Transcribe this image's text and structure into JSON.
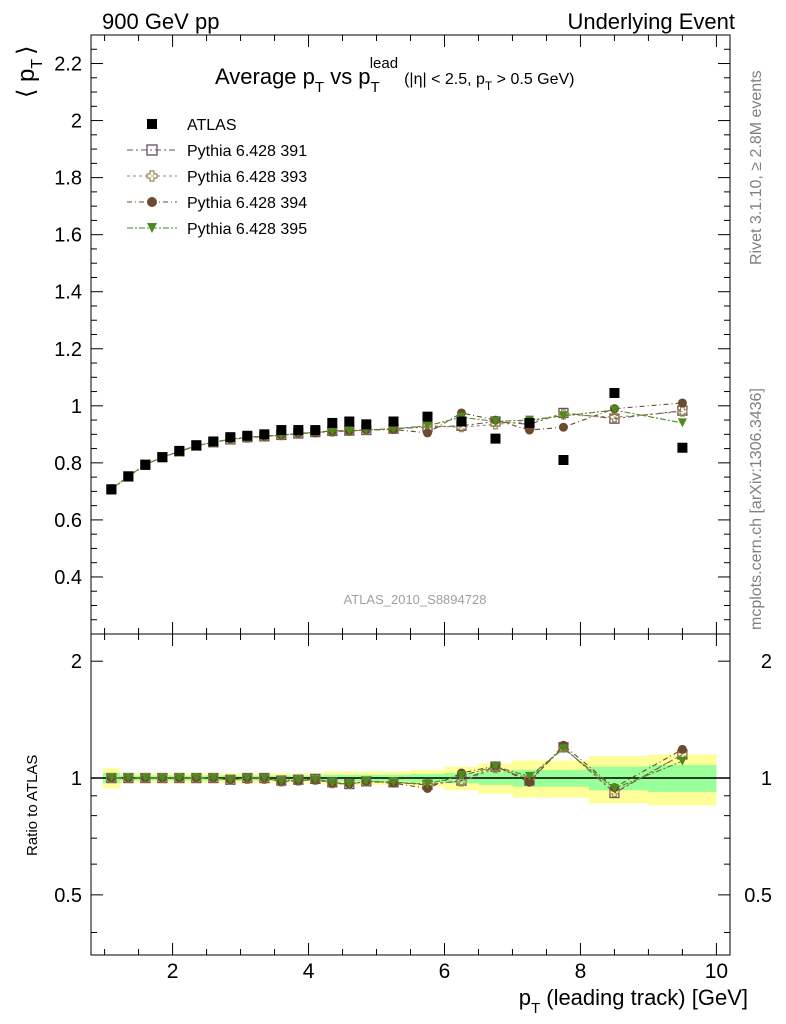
{
  "header": {
    "left": "900 GeV pp",
    "right": "Underlying Event"
  },
  "side_labels": {
    "rivet": "Rivet 3.1.10, ≥ 2.8M events",
    "mcplots": "mcplots.cern.ch [arXiv:1306.3436]"
  },
  "watermark": "ATLAS_2010_S8894728",
  "colors": {
    "atlas": "#000000",
    "p391": "#6b4c5e",
    "p393": "#9a8a52",
    "p394": "#6b4a2e",
    "p395": "#4e8a1c",
    "band_yellow": "#ffff99",
    "band_green": "#99ff99"
  },
  "chart_data": [
    {
      "type": "scatter",
      "title": "Average p_T vs p_T^lead (|η| < 2.5, p_T > 0.5 GeV)",
      "title_parts": {
        "main": "Average p",
        "sub1": "T",
        "vs": " vs p",
        "sub2": "T",
        "sup2": "lead",
        "cond": "(|η| < 2.5, p",
        "condsub": "T",
        "condend": " > 0.5 GeV)"
      },
      "ylabel": "⟨ p_T ⟩",
      "ylabel_parts": {
        "main": "⟨ p",
        "sub": "T",
        "end": "⟩"
      },
      "xlim": [
        0.8,
        10.2
      ],
      "ylim": [
        0.2,
        2.3
      ],
      "y_ticks": [
        0.4,
        0.6,
        0.8,
        1,
        1.2,
        1.4,
        1.6,
        1.8,
        2,
        2.2
      ],
      "y_tick_labels": [
        "0.4",
        "0.6",
        "0.8",
        "1",
        "1.2",
        "1.4",
        "1.6",
        "1.8",
        "2",
        "2.2"
      ],
      "legend_position": "top-left",
      "x": [
        1.1,
        1.35,
        1.6,
        1.85,
        2.1,
        2.35,
        2.6,
        2.85,
        3.1,
        3.35,
        3.6,
        3.85,
        4.1,
        4.35,
        4.6,
        4.85,
        5.25,
        5.75,
        6.25,
        6.75,
        7.25,
        7.75,
        8.5,
        9.5
      ],
      "series": [
        {
          "name": "ATLAS",
          "marker": "square-filled",
          "values": [
            0.707,
            0.752,
            0.793,
            0.82,
            0.842,
            0.862,
            0.875,
            0.89,
            0.895,
            0.9,
            0.915,
            0.915,
            0.915,
            0.94,
            0.945,
            0.935,
            0.945,
            0.962,
            0.945,
            0.885,
            0.94,
            0.81,
            1.045,
            0.853
          ]
        },
        {
          "name": "Pythia 6.428 391",
          "marker": "square-open",
          "values": [
            0.707,
            0.753,
            0.794,
            0.82,
            0.84,
            0.86,
            0.872,
            0.882,
            0.89,
            0.893,
            0.898,
            0.903,
            0.908,
            0.912,
            0.913,
            0.915,
            0.92,
            0.925,
            0.93,
            0.945,
            0.935,
            0.975,
            0.955,
            0.983
          ]
        },
        {
          "name": "Pythia 6.428 393",
          "marker": "cross-open",
          "values": [
            0.707,
            0.753,
            0.794,
            0.82,
            0.84,
            0.86,
            0.872,
            0.882,
            0.888,
            0.892,
            0.897,
            0.902,
            0.907,
            0.91,
            0.912,
            0.915,
            0.92,
            0.93,
            0.925,
            0.935,
            0.945,
            0.97,
            0.96,
            0.98
          ]
        },
        {
          "name": "Pythia 6.428 394",
          "marker": "circle-filled",
          "values": [
            0.707,
            0.753,
            0.794,
            0.82,
            0.84,
            0.86,
            0.872,
            0.883,
            0.89,
            0.893,
            0.897,
            0.903,
            0.905,
            0.91,
            0.912,
            0.915,
            0.917,
            0.905,
            0.975,
            0.95,
            0.915,
            0.925,
            0.99,
            1.01
          ]
        },
        {
          "name": "Pythia 6.428 395",
          "marker": "triangle-down-filled",
          "values": [
            0.707,
            0.753,
            0.794,
            0.82,
            0.84,
            0.86,
            0.872,
            0.883,
            0.89,
            0.893,
            0.897,
            0.903,
            0.907,
            0.91,
            0.912,
            0.915,
            0.918,
            0.93,
            0.96,
            0.945,
            0.95,
            0.965,
            0.985,
            0.94
          ]
        }
      ]
    },
    {
      "type": "scatter",
      "ylabel": "Ratio to ATLAS",
      "xlabel": "p_T (leading track) [GeV]",
      "xlabel_parts": {
        "main": "p",
        "sub": "T",
        "end": " (leading track) [GeV]"
      },
      "xlim": [
        0.8,
        10.2
      ],
      "ylim": [
        0.35,
        2.35
      ],
      "y_ticks": [
        0.5,
        1,
        2
      ],
      "y_tick_labels": [
        "0.5",
        "1",
        "2"
      ],
      "x_ticks": [
        2,
        4,
        6,
        8,
        10
      ],
      "x_tick_labels": [
        "2",
        "4",
        "6",
        "8",
        "10"
      ],
      "x": [
        1.1,
        1.35,
        1.6,
        1.85,
        2.1,
        2.35,
        2.6,
        2.85,
        3.1,
        3.35,
        3.6,
        3.85,
        4.1,
        4.35,
        4.6,
        4.85,
        5.25,
        5.75,
        6.25,
        6.75,
        7.25,
        7.75,
        8.5,
        9.5
      ],
      "bands": {
        "yellow_halfwidth": [
          0.06,
          0.03,
          0.03,
          0.03,
          0.03,
          0.03,
          0.03,
          0.03,
          0.03,
          0.03,
          0.03,
          0.03,
          0.03,
          0.04,
          0.04,
          0.04,
          0.04,
          0.05,
          0.07,
          0.09,
          0.11,
          0.11,
          0.14,
          0.15
        ],
        "green_halfwidth": [
          0.03,
          0.015,
          0.015,
          0.015,
          0.015,
          0.015,
          0.015,
          0.015,
          0.015,
          0.015,
          0.015,
          0.015,
          0.015,
          0.02,
          0.02,
          0.02,
          0.02,
          0.025,
          0.03,
          0.04,
          0.05,
          0.05,
          0.07,
          0.08
        ]
      },
      "series": [
        {
          "name": "Pythia 6.428 391",
          "values": [
            1.0,
            1.0,
            1.0,
            1.0,
            1.0,
            1.0,
            1.0,
            0.99,
            1.0,
            1.0,
            0.985,
            0.99,
            0.995,
            0.975,
            0.965,
            0.98,
            0.975,
            0.96,
            0.985,
            1.07,
            0.985,
            1.2,
            0.915,
            1.15
          ]
        },
        {
          "name": "Pythia 6.428 393",
          "values": [
            1.0,
            1.0,
            1.0,
            1.0,
            1.0,
            1.0,
            1.0,
            0.99,
            0.995,
            0.995,
            0.98,
            0.985,
            0.99,
            0.97,
            0.965,
            0.98,
            0.975,
            0.965,
            0.98,
            1.06,
            1.0,
            1.2,
            0.92,
            1.15
          ]
        },
        {
          "name": "Pythia 6.428 394",
          "values": [
            1.0,
            1.0,
            1.0,
            1.0,
            1.0,
            1.0,
            1.0,
            0.99,
            1.0,
            1.0,
            0.98,
            0.985,
            0.99,
            0.97,
            0.965,
            0.98,
            0.97,
            0.94,
            1.03,
            1.075,
            0.975,
            1.215,
            0.945,
            1.185
          ]
        },
        {
          "name": "Pythia 6.428 395",
          "values": [
            1.0,
            1.0,
            1.0,
            1.0,
            1.0,
            1.0,
            1.0,
            0.99,
            1.0,
            1.0,
            0.98,
            0.985,
            0.99,
            0.97,
            0.965,
            0.98,
            0.975,
            0.965,
            1.015,
            1.07,
            1.01,
            1.19,
            0.94,
            1.105
          ]
        }
      ]
    }
  ]
}
